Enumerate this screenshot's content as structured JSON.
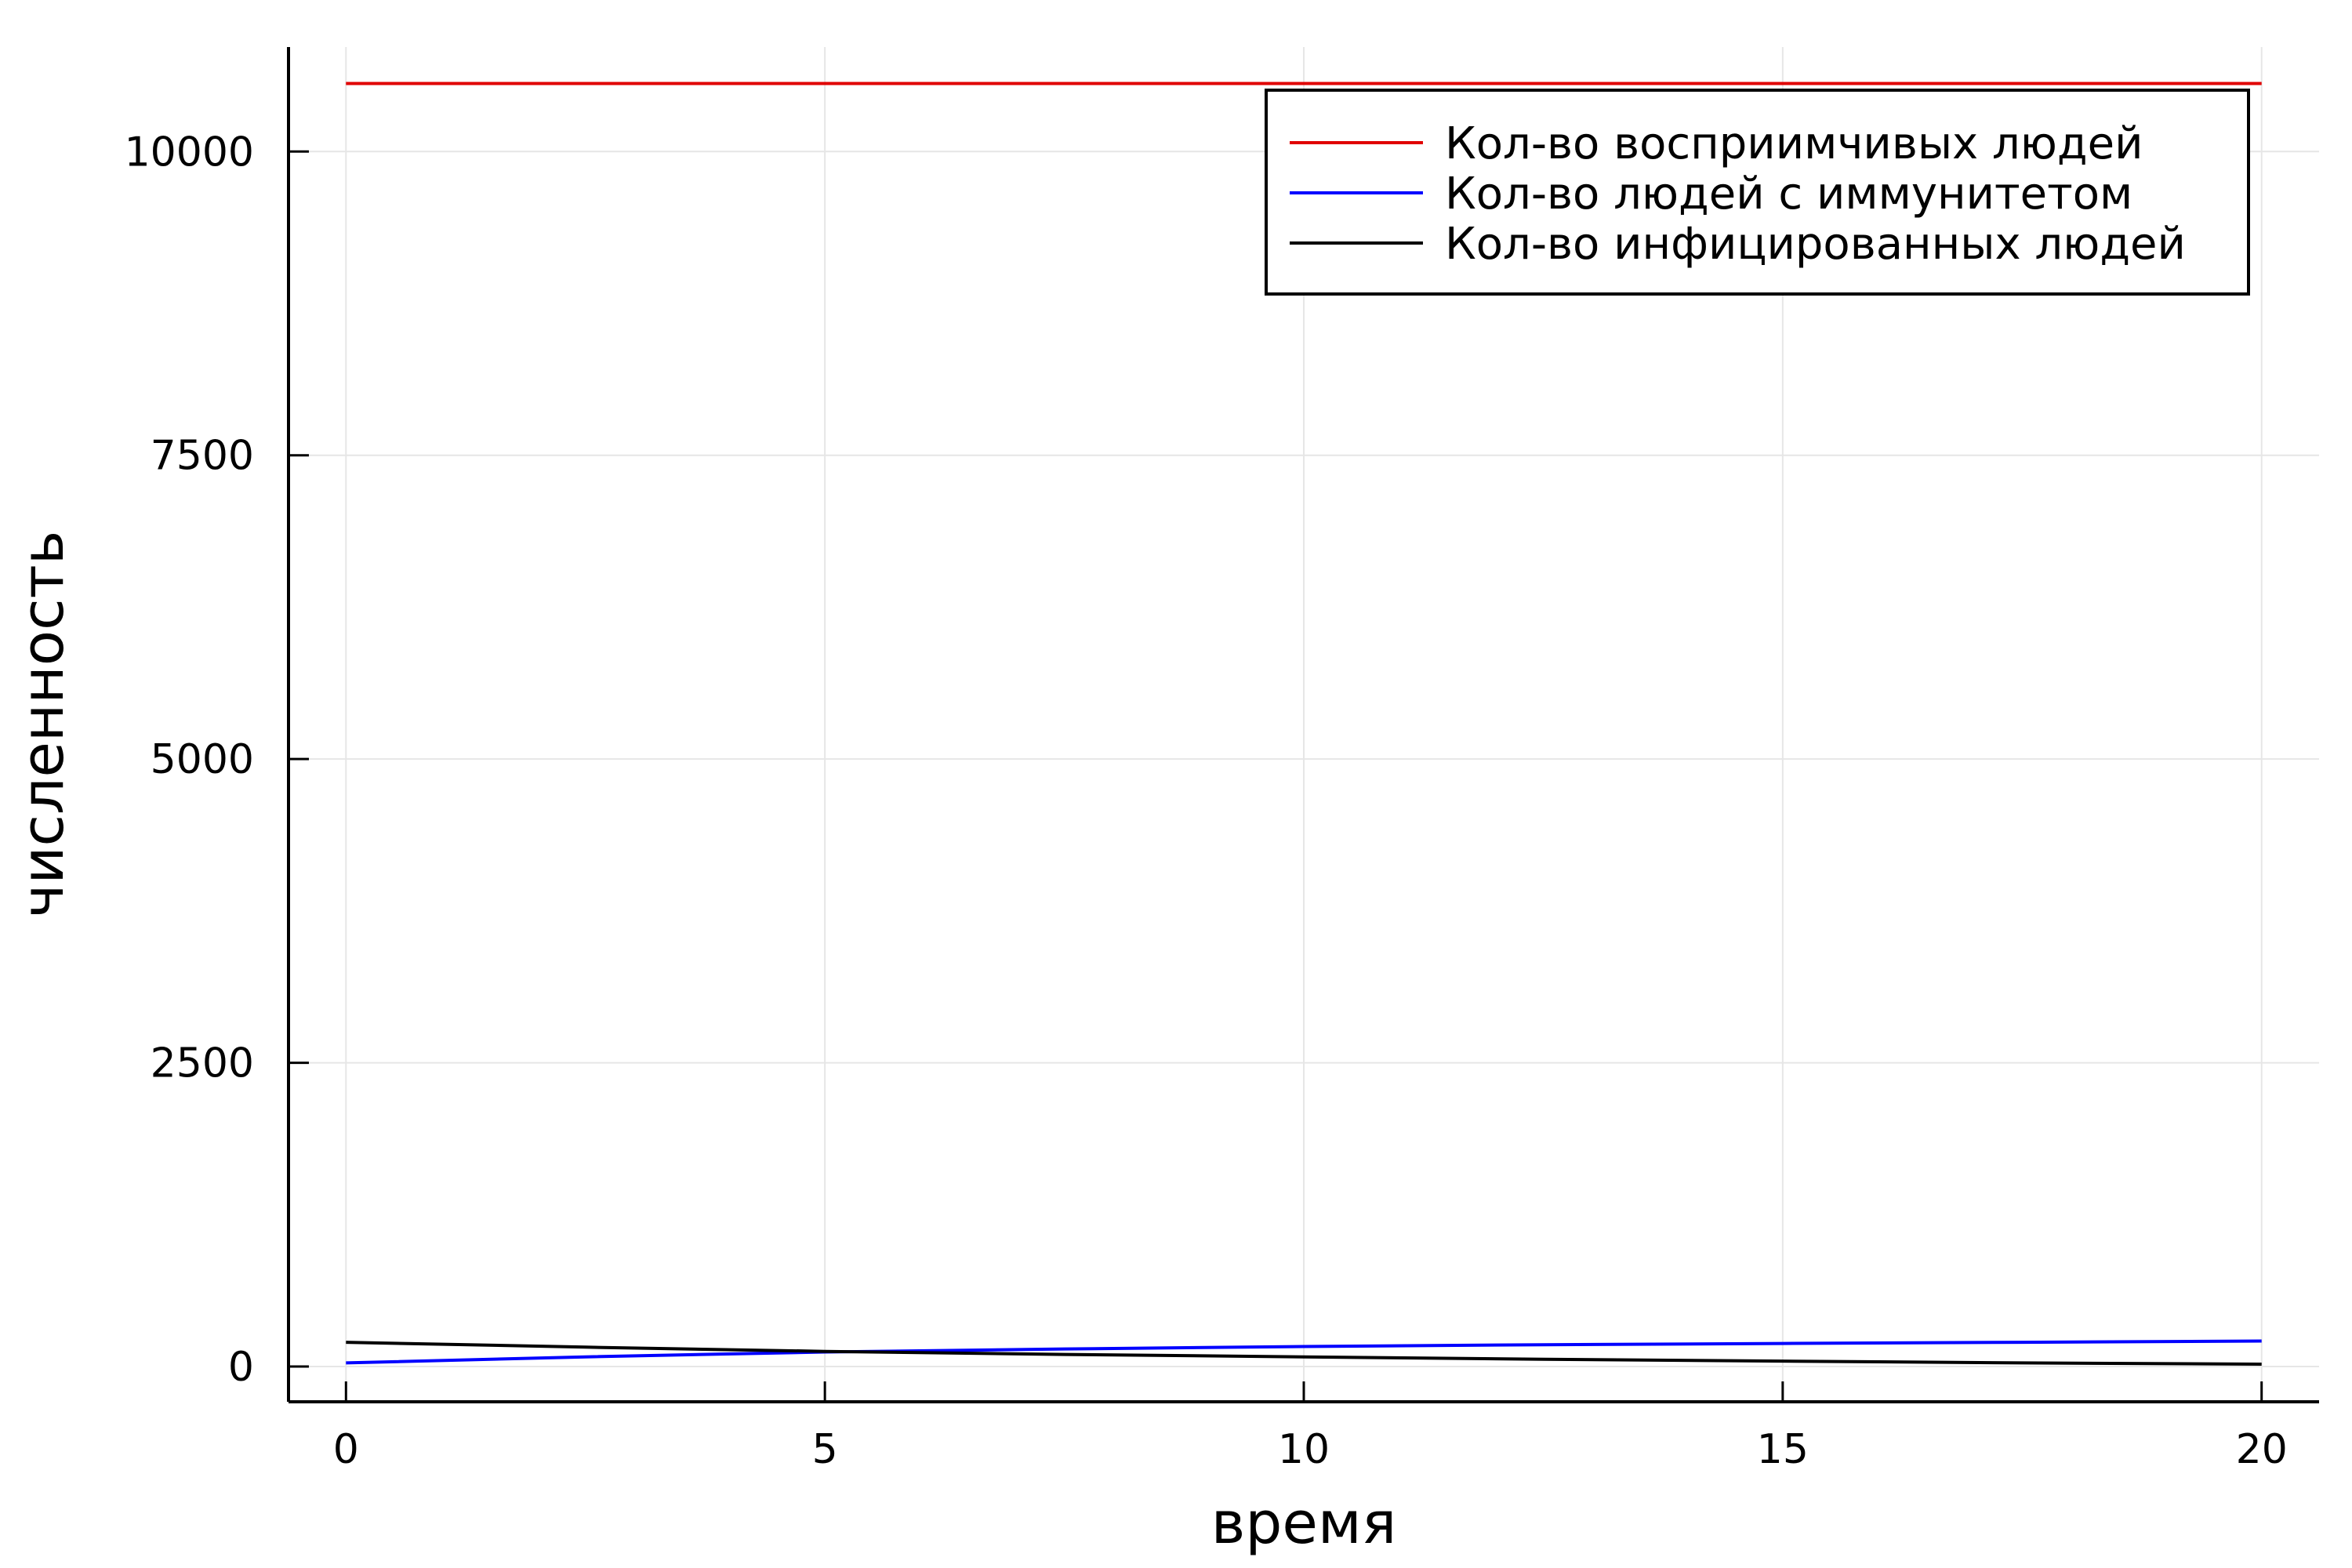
{
  "chart_data": {
    "type": "line",
    "xlabel": "время",
    "ylabel": "численность",
    "xlim": [
      -0.6,
      20.6
    ],
    "ylim": [
      -290,
      10860
    ],
    "xticks": [
      0,
      5,
      10,
      15,
      20
    ],
    "yticks": [
      0,
      2500,
      5000,
      7500,
      10000
    ],
    "grid": true,
    "legend_position": "top-right",
    "series": [
      {
        "name": "Кол-во восприимчивых людей",
        "color": "#e00000",
        "x": [
          0,
          2.5,
          5,
          7.5,
          10,
          12.5,
          15,
          17.5,
          20
        ],
        "y": [
          10560,
          10560,
          10560,
          10560,
          10560,
          10560,
          10560,
          10560,
          10560
        ]
      },
      {
        "name": "Кол-во людей с иммунитетом",
        "color": "#0000ff",
        "x": [
          0,
          2.5,
          5,
          7.5,
          10,
          12.5,
          15,
          17.5,
          20
        ],
        "y": [
          30,
          80,
          120,
          145,
          165,
          180,
          190,
          200,
          210
        ]
      },
      {
        "name": "Кол-во инфицированных людей",
        "color": "#000000",
        "x": [
          0,
          2.5,
          5,
          7.5,
          10,
          12.5,
          15,
          17.5,
          20
        ],
        "y": [
          200,
          160,
          125,
          100,
          80,
          60,
          45,
          30,
          20
        ]
      }
    ]
  }
}
